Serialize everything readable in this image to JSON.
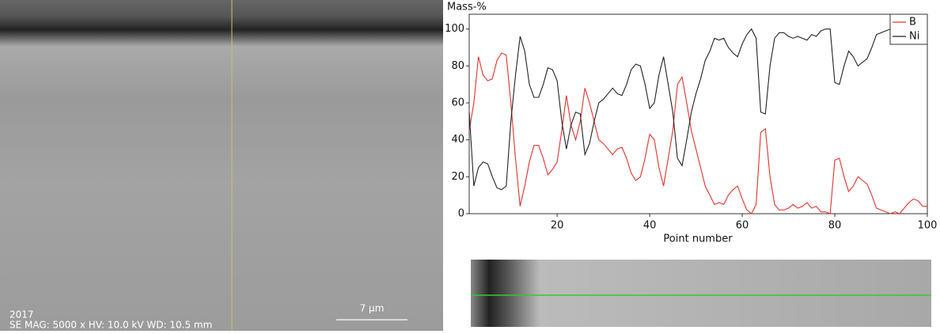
{
  "chart_data": {
    "type": "line",
    "y_label": "Mass-%",
    "x_label": "Point number",
    "x": [
      1,
      2,
      3,
      4,
      5,
      6,
      7,
      8,
      9,
      10,
      11,
      12,
      13,
      14,
      15,
      16,
      17,
      18,
      19,
      20,
      21,
      22,
      23,
      24,
      25,
      26,
      27,
      28,
      29,
      30,
      31,
      32,
      33,
      34,
      35,
      36,
      37,
      38,
      39,
      40,
      41,
      42,
      43,
      44,
      45,
      46,
      47,
      48,
      49,
      50,
      51,
      52,
      53,
      54,
      55,
      56,
      57,
      58,
      59,
      60,
      61,
      62,
      63,
      64,
      65,
      66,
      67,
      68,
      69,
      70,
      71,
      72,
      73,
      74,
      75,
      76,
      77,
      78,
      79,
      80,
      81,
      82,
      83,
      84,
      85,
      86,
      87,
      88,
      89,
      90,
      91,
      92,
      93,
      94,
      95,
      96,
      97,
      98,
      99,
      100
    ],
    "series": [
      {
        "name": "B",
        "color": "#e8302a",
        "values": [
          45,
          60,
          85,
          75,
          72,
          73,
          83,
          87,
          86,
          60,
          30,
          4,
          15,
          28,
          37,
          37,
          30,
          21,
          24,
          28,
          45,
          64,
          48,
          40,
          50,
          68,
          60,
          50,
          40,
          38,
          35,
          32,
          35,
          36,
          30,
          22,
          18,
          20,
          30,
          43,
          40,
          25,
          15,
          30,
          45,
          70,
          74,
          60,
          45,
          35,
          25,
          15,
          10,
          5,
          6,
          5,
          10,
          13,
          15,
          8,
          2,
          0,
          5,
          44,
          46,
          20,
          5,
          2,
          2,
          3,
          5,
          3,
          4,
          6,
          3,
          4,
          1,
          1,
          0,
          29,
          30,
          20,
          12,
          15,
          20,
          18,
          16,
          10,
          3,
          2,
          1,
          0,
          1,
          0,
          3,
          6,
          8,
          7,
          4,
          4
        ]
      },
      {
        "name": "Ni",
        "color": "#222222",
        "values": [
          55,
          15,
          25,
          28,
          27,
          20,
          14,
          13,
          15,
          50,
          75,
          96,
          88,
          70,
          63,
          63,
          70,
          79,
          78,
          72,
          50,
          35,
          48,
          55,
          54,
          32,
          38,
          50,
          60,
          62,
          65,
          68,
          65,
          64,
          70,
          78,
          81,
          80,
          70,
          57,
          60,
          75,
          85,
          70,
          55,
          30,
          26,
          40,
          55,
          65,
          73,
          83,
          88,
          95,
          94,
          95,
          90,
          87,
          85,
          92,
          97,
          100,
          95,
          55,
          54,
          80,
          95,
          98,
          98,
          96,
          95,
          96,
          95,
          94,
          97,
          96,
          99,
          100,
          100,
          71,
          70,
          80,
          88,
          85,
          80,
          82,
          84,
          90,
          97,
          98,
          99,
          100,
          99,
          100,
          97,
          94,
          92,
          93,
          96,
          96
        ]
      }
    ],
    "xlim": [
      1,
      100
    ],
    "xticks": [
      20,
      40,
      60,
      80,
      100
    ],
    "ylim": [
      0,
      108
    ],
    "yticks": [
      0,
      20,
      40,
      60,
      80,
      100
    ],
    "legend": "top-right"
  },
  "image_labels": {
    "year": "2017",
    "info": "SE  MAG: 5000 x  HV: 10.0 kV  WD: 10.5 mm",
    "scale": "7 µm"
  }
}
